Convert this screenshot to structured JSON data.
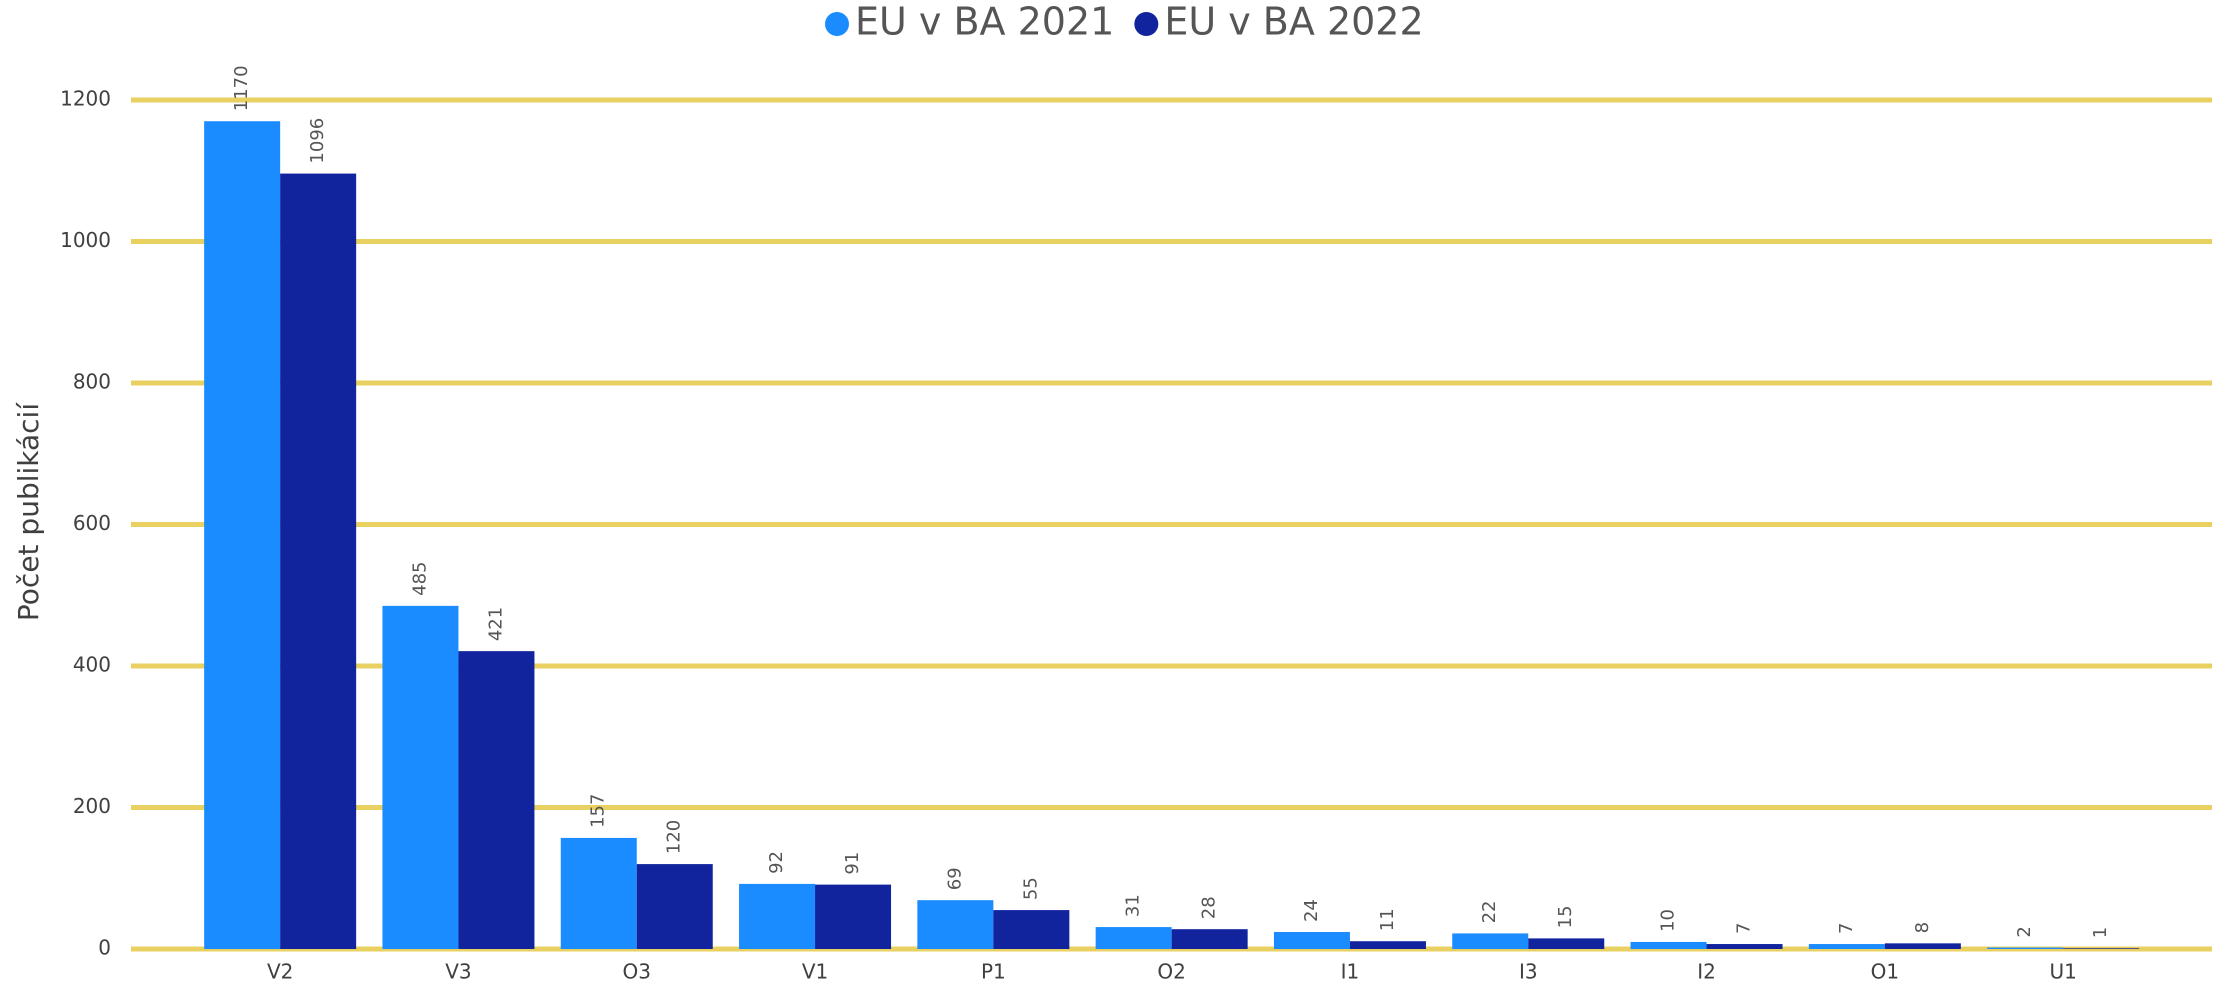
{
  "chart_data": {
    "type": "bar",
    "y_label": "Počet publikácií",
    "categories": [
      "V2",
      "V3",
      "O3",
      "V1",
      "P1",
      "O2",
      "I1",
      "I3",
      "I2",
      "O1",
      "U1"
    ],
    "series": [
      {
        "name": "EU v BA 2021",
        "color": "#1a8cff",
        "values": [
          1170,
          485,
          157,
          92,
          69,
          31,
          24,
          22,
          10,
          7,
          2
        ]
      },
      {
        "name": "EU v BA 2022",
        "color": "#12239e",
        "values": [
          1096,
          421,
          120,
          91,
          55,
          28,
          11,
          15,
          7,
          8,
          1
        ]
      }
    ],
    "ylim": [
      0,
      1200
    ],
    "yticks": [
      0,
      200,
      400,
      600,
      800,
      1000,
      1200
    ],
    "grid": true,
    "grid_color": "#e8d160",
    "legend": "top"
  }
}
